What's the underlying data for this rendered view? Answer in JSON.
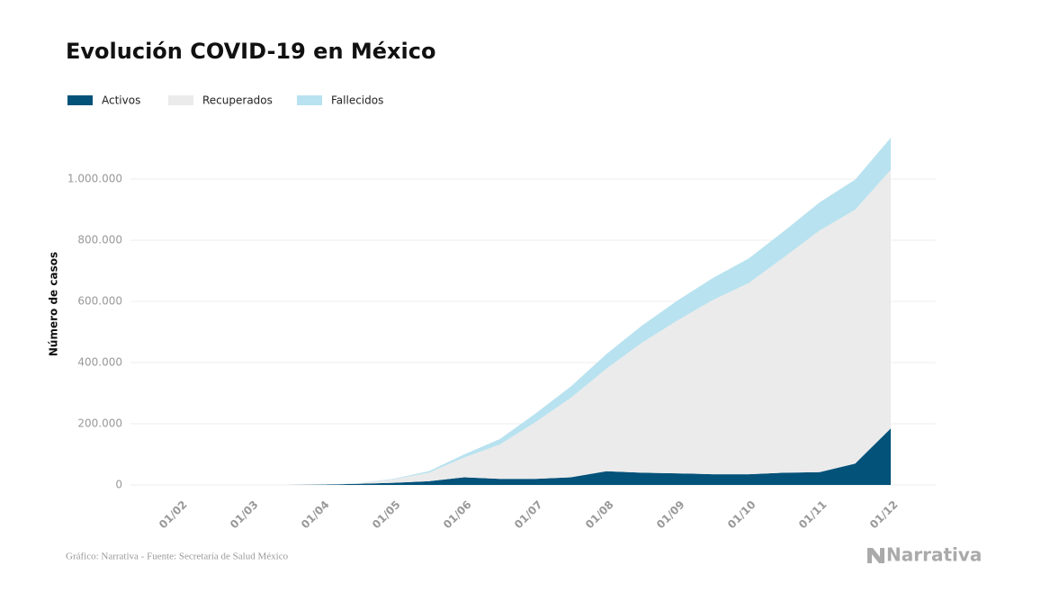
{
  "chart_data": {
    "type": "stacked-area",
    "title": "Evolución COVID-19 en México",
    "y_label": "Número de casos",
    "source": "Gráfico: Narrativa - Fuente: Secretaría de Salud México",
    "brand": "Narrativa",
    "categories": [
      "01/02",
      null,
      "01/03",
      null,
      "01/04",
      null,
      "01/05",
      null,
      "01/06",
      null,
      "01/07",
      null,
      "01/08",
      null,
      "01/09",
      null,
      "01/10",
      null,
      "01/11",
      null,
      "01/12"
    ],
    "series": [
      {
        "name": "Activos",
        "color": "#03527a",
        "values": [
          0,
          0,
          0,
          100,
          1000,
          3500,
          7000,
          12000,
          25000,
          20000,
          20000,
          25000,
          45000,
          40000,
          38000,
          35000,
          35000,
          40000,
          42000,
          70000,
          185000
        ]
      },
      {
        "name": "Recuperados",
        "color": "#ebebeb",
        "values": [
          0,
          0,
          0,
          0,
          200,
          2000,
          11000,
          28000,
          65000,
          112000,
          185000,
          260000,
          335000,
          425000,
          500000,
          570000,
          625000,
          705000,
          790000,
          830000,
          845000
        ]
      },
      {
        "name": "Fallecidos",
        "color": "#b8e2ef",
        "values": [
          0,
          0,
          0,
          0,
          30,
          450,
          2000,
          5000,
          10000,
          18000,
          28000,
          37000,
          48000,
          56000,
          65000,
          72000,
          80000,
          85000,
          92000,
          98000,
          105000
        ]
      }
    ],
    "ylim": [
      0,
      1200000
    ],
    "yticks": [
      0,
      {
        "value": 200000,
        "label": "200.000"
      },
      {
        "value": 400000,
        "label": "400.000"
      },
      {
        "value": 600000,
        "label": "600.000"
      },
      {
        "value": 800000,
        "label": "800.000"
      },
      {
        "value": 1000000,
        "label": "1.000.000"
      }
    ],
    "grid": true
  }
}
